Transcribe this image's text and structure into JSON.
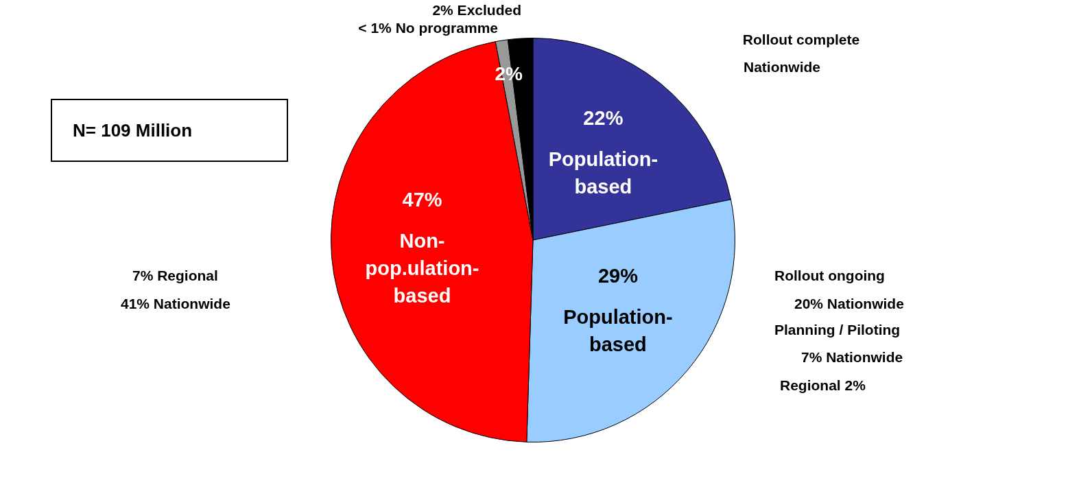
{
  "chart_data": {
    "type": "pie",
    "categories": [
      "Population-based",
      "Population-based",
      "Non-pop.ulation-based",
      "< 1% No programme",
      "2% Excluded"
    ],
    "values": [
      22,
      29,
      47,
      1,
      2
    ],
    "value_labels": [
      "22%",
      "29%",
      "47%",
      null,
      "2%"
    ],
    "colors": [
      "#333399",
      "#99ccff",
      "#ff0000",
      "#999999",
      "#000000"
    ],
    "legend": false,
    "annotations": [
      "Rollout complete",
      "Nationwide",
      "Rollout ongoing",
      "20% Nationwide",
      "Planning / Piloting",
      "7% Nationwide",
      "Regional 2%",
      "7% Regional",
      "41% Nationwide",
      "N= 109 Million"
    ]
  }
}
